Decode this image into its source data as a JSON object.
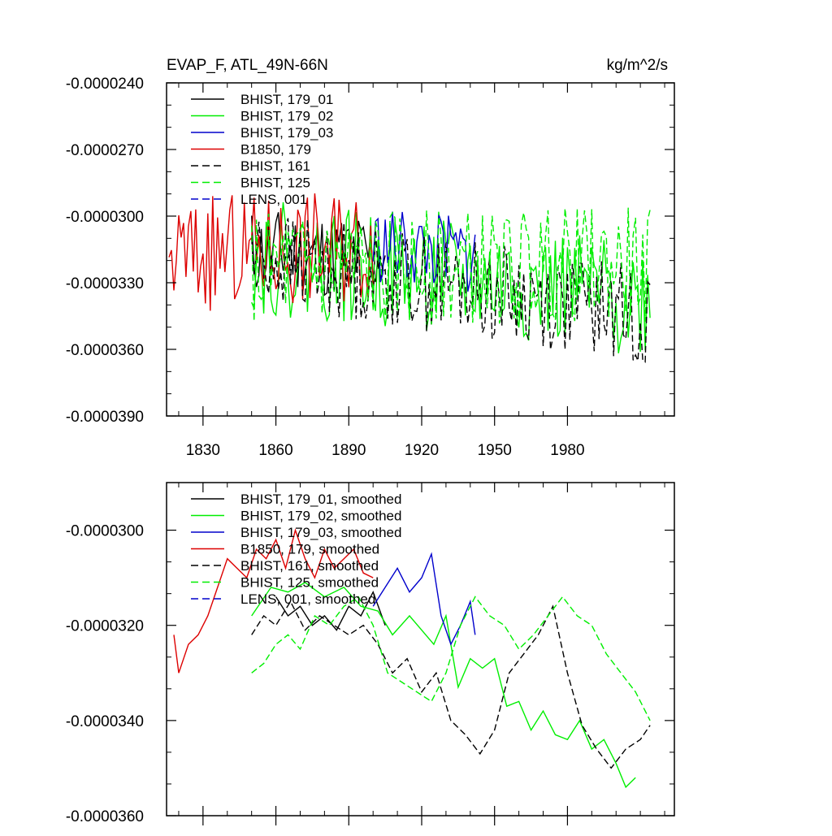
{
  "figure": {
    "background": "#ffffff"
  },
  "chart_data": [
    {
      "type": "line",
      "title": "EVAP_F, ATL_49N-66N",
      "units": "kg/m^2/s",
      "xlabel": "",
      "ylabel": "",
      "xlim": [
        1815,
        2024
      ],
      "ylim": [
        -3.9e-05,
        -2.4e-05
      ],
      "x_tick_values": [
        1830,
        1860,
        1890,
        1920,
        1950,
        1980
      ],
      "x_tick_labels": [
        "1830",
        "1860",
        "1890",
        "1920",
        "1950",
        "1980"
      ],
      "y_tick_values": [
        -2.4e-05,
        -2.7e-05,
        -3e-05,
        -3.3e-05,
        -3.6e-05,
        -3.9e-05
      ],
      "y_tick_labels": [
        "-0.0000240",
        "-0.0000270",
        "-0.0000300",
        "-0.0000330",
        "-0.0000360",
        "-0.0000390"
      ],
      "grid": false,
      "legend_position": "top-left",
      "series": [
        {
          "name": "BHIST, 179_01",
          "color": "#000000",
          "dash": "solid",
          "x_start": 1850,
          "x_end": 1905,
          "base": -3.16e-05,
          "base_end": -3.18e-05,
          "amp": 2e-06,
          "seed": 11
        },
        {
          "name": "BHIST, 179_02",
          "color": "#00ee00",
          "dash": "solid",
          "x_start": 1850,
          "x_end": 2014,
          "base": -3.18e-05,
          "base_end": -3.38e-05,
          "amp": 2.6e-06,
          "seed": 22
        },
        {
          "name": "BHIST, 179_03",
          "color": "#0000cc",
          "dash": "solid",
          "x_start": 1900,
          "x_end": 1942,
          "base": -3.13e-05,
          "base_end": -3.18e-05,
          "amp": 1.8e-06,
          "seed": 33
        },
        {
          "name": "B1850, 179",
          "color": "#dd0000",
          "dash": "solid",
          "x_start": 1816,
          "x_end": 1900,
          "base": -3.18e-05,
          "base_end": -3.12e-05,
          "amp": 2.6e-06,
          "seed": 44
        },
        {
          "name": "BHIST, 161",
          "color": "#000000",
          "dash": "dashed",
          "x_start": 1850,
          "x_end": 2014,
          "base": -3.18e-05,
          "base_end": -3.45e-05,
          "amp": 2.2e-06,
          "seed": 55
        },
        {
          "name": "BHIST, 125",
          "color": "#00ee00",
          "dash": "dashed",
          "x_start": 1850,
          "x_end": 2014,
          "base": -3.24e-05,
          "base_end": -3.22e-05,
          "amp": 2.6e-06,
          "seed": 66
        },
        {
          "name": "LENS, 001",
          "color": "#0000cc",
          "dash": "dashed",
          "x_start": null,
          "x_end": null,
          "base": null,
          "base_end": null,
          "amp": 0,
          "seed": 0
        }
      ]
    },
    {
      "type": "line",
      "title": "",
      "units": "",
      "xlabel": "",
      "ylabel": "",
      "xlim": [
        1815,
        2024
      ],
      "ylim": [
        -3.6e-05,
        -2.9e-05
      ],
      "x_tick_values": [
        1830,
        1860,
        1890,
        1920,
        1950,
        1980
      ],
      "x_tick_labels": [],
      "y_tick_values": [
        -3e-05,
        -3.2e-05,
        -3.4e-05,
        -3.6e-05
      ],
      "y_tick_labels": [
        "-0.0000300",
        "-0.0000320",
        "-0.0000340",
        "-0.0000360"
      ],
      "grid": false,
      "legend_position": "top-left",
      "series": [
        {
          "name": "BHIST, 179_01, smoothed",
          "color": "#000000",
          "dash": "solid",
          "points": [
            [
              1860,
              -3.14e-05
            ],
            [
              1865,
              -3.18e-05
            ],
            [
              1870,
              -3.16e-05
            ],
            [
              1875,
              -3.2e-05
            ],
            [
              1880,
              -3.18e-05
            ],
            [
              1885,
              -3.21e-05
            ],
            [
              1890,
              -3.16e-05
            ],
            [
              1895,
              -3.18e-05
            ],
            [
              1900,
              -3.13e-05
            ],
            [
              1905,
              -3.2e-05
            ]
          ]
        },
        {
          "name": "BHIST, 179_02, smoothed",
          "color": "#00ee00",
          "dash": "solid",
          "points": [
            [
              1850,
              -3.18e-05
            ],
            [
              1858,
              -3.12e-05
            ],
            [
              1865,
              -3.13e-05
            ],
            [
              1872,
              -3.11e-05
            ],
            [
              1880,
              -3.14e-05
            ],
            [
              1888,
              -3.12e-05
            ],
            [
              1895,
              -3.16e-05
            ],
            [
              1902,
              -3.17e-05
            ],
            [
              1908,
              -3.22e-05
            ],
            [
              1915,
              -3.18e-05
            ],
            [
              1920,
              -3.21e-05
            ],
            [
              1925,
              -3.24e-05
            ],
            [
              1930,
              -3.18e-05
            ],
            [
              1935,
              -3.33e-05
            ],
            [
              1940,
              -3.27e-05
            ],
            [
              1945,
              -3.29e-05
            ],
            [
              1950,
              -3.27e-05
            ],
            [
              1955,
              -3.37e-05
            ],
            [
              1960,
              -3.36e-05
            ],
            [
              1965,
              -3.42e-05
            ],
            [
              1970,
              -3.38e-05
            ],
            [
              1975,
              -3.43e-05
            ],
            [
              1980,
              -3.44e-05
            ],
            [
              1985,
              -3.4e-05
            ],
            [
              1990,
              -3.46e-05
            ],
            [
              1995,
              -3.44e-05
            ],
            [
              2000,
              -3.49e-05
            ],
            [
              2004,
              -3.54e-05
            ],
            [
              2008,
              -3.52e-05
            ]
          ]
        },
        {
          "name": "BHIST, 179_03, smoothed",
          "color": "#0000cc",
          "dash": "solid",
          "points": [
            [
              1900,
              -3.16e-05
            ],
            [
              1905,
              -3.12e-05
            ],
            [
              1910,
              -3.08e-05
            ],
            [
              1915,
              -3.13e-05
            ],
            [
              1920,
              -3.1e-05
            ],
            [
              1924,
              -3.05e-05
            ],
            [
              1928,
              -3.18e-05
            ],
            [
              1932,
              -3.24e-05
            ],
            [
              1936,
              -3.2e-05
            ],
            [
              1940,
              -3.15e-05
            ],
            [
              1942,
              -3.22e-05
            ]
          ]
        },
        {
          "name": "B1850, 179, smoothed",
          "color": "#dd0000",
          "dash": "solid",
          "points": [
            [
              1818,
              -3.22e-05
            ],
            [
              1820,
              -3.3e-05
            ],
            [
              1824,
              -3.24e-05
            ],
            [
              1828,
              -3.22e-05
            ],
            [
              1832,
              -3.18e-05
            ],
            [
              1836,
              -3.12e-05
            ],
            [
              1840,
              -3.06e-05
            ],
            [
              1844,
              -3.08e-05
            ],
            [
              1848,
              -3.1e-05
            ],
            [
              1852,
              -3.04e-05
            ],
            [
              1856,
              -3.06e-05
            ],
            [
              1860,
              -3.02e-05
            ],
            [
              1864,
              -3.08e-05
            ],
            [
              1868,
              -3e-05
            ],
            [
              1872,
              -3.06e-05
            ],
            [
              1876,
              -3.1e-05
            ],
            [
              1880,
              -3.04e-05
            ],
            [
              1884,
              -3.08e-05
            ],
            [
              1888,
              -3.06e-05
            ],
            [
              1892,
              -3.04e-05
            ],
            [
              1896,
              -3.09e-05
            ],
            [
              1900,
              -3.1e-05
            ]
          ]
        },
        {
          "name": "BHIST, 161, smoothed",
          "color": "#000000",
          "dash": "dashed",
          "points": [
            [
              1850,
              -3.22e-05
            ],
            [
              1855,
              -3.18e-05
            ],
            [
              1860,
              -3.2e-05
            ],
            [
              1866,
              -3.15e-05
            ],
            [
              1872,
              -3.21e-05
            ],
            [
              1878,
              -3.18e-05
            ],
            [
              1884,
              -3.2e-05
            ],
            [
              1890,
              -3.22e-05
            ],
            [
              1896,
              -3.2e-05
            ],
            [
              1902,
              -3.24e-05
            ],
            [
              1908,
              -3.3e-05
            ],
            [
              1914,
              -3.27e-05
            ],
            [
              1920,
              -3.34e-05
            ],
            [
              1926,
              -3.3e-05
            ],
            [
              1932,
              -3.4e-05
            ],
            [
              1938,
              -3.43e-05
            ],
            [
              1944,
              -3.47e-05
            ],
            [
              1950,
              -3.42e-05
            ],
            [
              1956,
              -3.3e-05
            ],
            [
              1962,
              -3.26e-05
            ],
            [
              1968,
              -3.22e-05
            ],
            [
              1974,
              -3.16e-05
            ],
            [
              1980,
              -3.3e-05
            ],
            [
              1986,
              -3.41e-05
            ],
            [
              1992,
              -3.46e-05
            ],
            [
              1998,
              -3.5e-05
            ],
            [
              2004,
              -3.46e-05
            ],
            [
              2010,
              -3.44e-05
            ],
            [
              2014,
              -3.41e-05
            ]
          ]
        },
        {
          "name": "BHIST, 125, smoothed",
          "color": "#00ee00",
          "dash": "dashed",
          "points": [
            [
              1850,
              -3.3e-05
            ],
            [
              1855,
              -3.28e-05
            ],
            [
              1860,
              -3.24e-05
            ],
            [
              1865,
              -3.22e-05
            ],
            [
              1870,
              -3.25e-05
            ],
            [
              1876,
              -3.18e-05
            ],
            [
              1882,
              -3.2e-05
            ],
            [
              1888,
              -3.16e-05
            ],
            [
              1894,
              -3.14e-05
            ],
            [
              1900,
              -3.2e-05
            ],
            [
              1906,
              -3.3e-05
            ],
            [
              1912,
              -3.32e-05
            ],
            [
              1918,
              -3.34e-05
            ],
            [
              1924,
              -3.36e-05
            ],
            [
              1930,
              -3.3e-05
            ],
            [
              1936,
              -3.2e-05
            ],
            [
              1942,
              -3.14e-05
            ],
            [
              1948,
              -3.18e-05
            ],
            [
              1954,
              -3.2e-05
            ],
            [
              1960,
              -3.25e-05
            ],
            [
              1966,
              -3.22e-05
            ],
            [
              1972,
              -3.18e-05
            ],
            [
              1978,
              -3.14e-05
            ],
            [
              1984,
              -3.18e-05
            ],
            [
              1990,
              -3.2e-05
            ],
            [
              1996,
              -3.26e-05
            ],
            [
              2002,
              -3.3e-05
            ],
            [
              2008,
              -3.34e-05
            ],
            [
              2014,
              -3.4e-05
            ]
          ]
        },
        {
          "name": "LENS, 001, smoothed",
          "color": "#0000cc",
          "dash": "dashed",
          "points": []
        }
      ]
    }
  ]
}
